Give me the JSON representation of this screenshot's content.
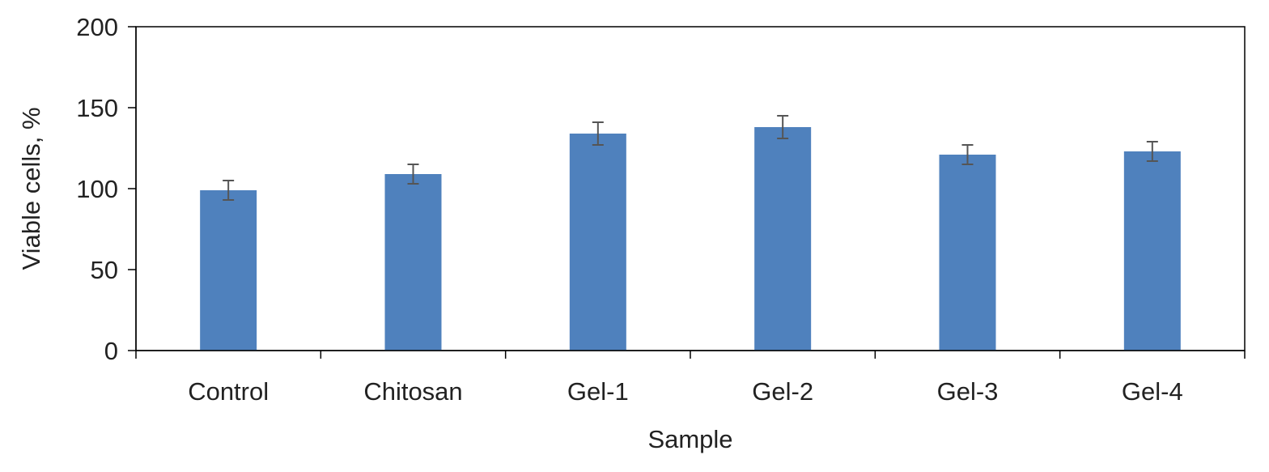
{
  "chart_data": {
    "type": "bar",
    "title": "",
    "xlabel": "Sample",
    "ylabel": "Viable cells, %",
    "categories": [
      "Control",
      "Chitosan",
      "Gel-1",
      "Gel-2",
      "Gel-3",
      "Gel-4"
    ],
    "values": [
      99,
      109,
      134,
      138,
      121,
      123
    ],
    "errors": [
      6,
      6,
      7,
      7,
      6,
      6
    ],
    "ylim": [
      0,
      200
    ],
    "yticks": [
      "0",
      "50",
      "100",
      "150",
      "200"
    ],
    "grid": false,
    "legend": "none",
    "bar_color": "#4f81bd",
    "error_color": "#555555"
  }
}
